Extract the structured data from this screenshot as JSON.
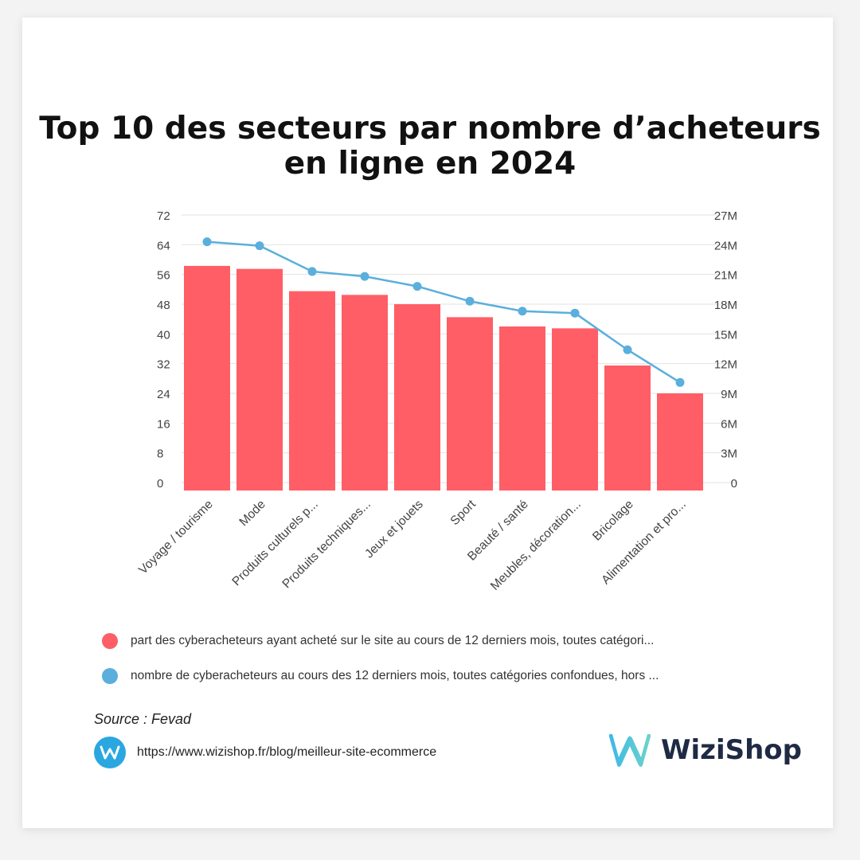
{
  "title": {
    "line1": "Top 10 des secteurs par nombre d’acheteurs",
    "line2": "en ligne en 2024"
  },
  "colors": {
    "bar": "#ff5e66",
    "line": "#5aafdc",
    "grid": "#e2e2e2",
    "axis_text": "#444444"
  },
  "chart_data": {
    "type": "bar",
    "categories": [
      "Voyage / tourisme",
      "Mode",
      "Produits culturels p...",
      "Produits techniques...",
      "Jeux et jouets",
      "Sport",
      "Beauté / santé",
      "Meubles, décoration...",
      "Bricolage",
      "Alimentation et pro..."
    ],
    "series": [
      {
        "name": "part des cyberacheteurs ayant acheté sur le site au cours de 12 derniers mois, toutes catégori...",
        "type": "bar",
        "axis": "left",
        "values": [
          58.3,
          57.5,
          51.5,
          50.5,
          48.0,
          44.5,
          42.0,
          41.5,
          31.5,
          24.0
        ]
      },
      {
        "name": "nombre de cyberacheteurs au cours des 12 derniers mois, toutes catégories confondues, hors ...",
        "type": "line",
        "axis": "right",
        "values": [
          24300000,
          23900000,
          21300000,
          20800000,
          19800000,
          18300000,
          17300000,
          17100000,
          13400000,
          10100000
        ]
      }
    ],
    "y_left": {
      "ticks": [
        "0",
        "8",
        "16",
        "24",
        "32",
        "40",
        "48",
        "56",
        "64",
        "72"
      ],
      "range": [
        0,
        72
      ]
    },
    "y_right": {
      "ticks": [
        "0",
        "3M",
        "6M",
        "9M",
        "12M",
        "15M",
        "18M",
        "21M",
        "24M",
        "27M"
      ],
      "range": [
        0,
        27000000
      ]
    },
    "grid": true,
    "legend_position": "bottom"
  },
  "legend": [
    {
      "label": "part des cyberacheteurs ayant acheté sur le site au cours de 12 derniers mois, toutes catégori...",
      "color": "#ff5e66"
    },
    {
      "label": "nombre de cyberacheteurs au cours des 12 derniers mois, toutes catégories confondues, hors ...",
      "color": "#5aafdc"
    }
  ],
  "footer": {
    "source": "Source : Fevad",
    "url": "https://www.wizishop.fr/blog/meilleur-site-ecommerce",
    "brand": "WiziShop"
  }
}
